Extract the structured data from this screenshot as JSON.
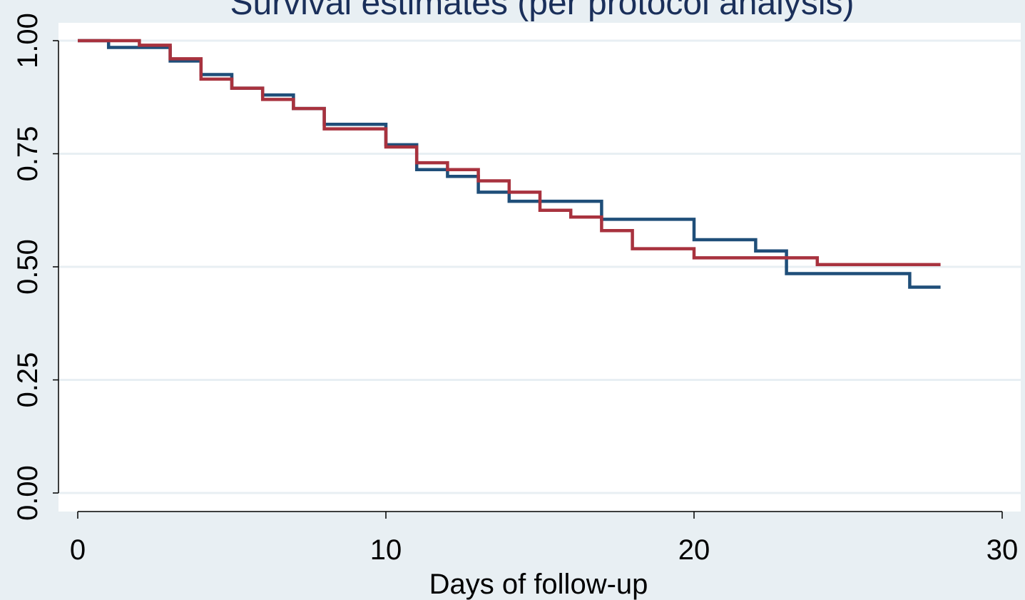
{
  "chart_data": {
    "type": "line",
    "step": true,
    "title": "Survival estimates (per protocol analysis)",
    "xlabel": "Days of follow-up",
    "ylabel": "",
    "xlim": [
      0,
      30
    ],
    "ylim": [
      0,
      1
    ],
    "x_ticks": [
      "0",
      "10",
      "20",
      "30"
    ],
    "y_ticks": [
      "0.00",
      "0.25",
      "0.50",
      "0.75",
      "1.00"
    ],
    "grid": "horizontal",
    "legend": "none",
    "colors": {
      "background": "#e8eff3",
      "plot_area": "#ffffff",
      "gridline": "#e8eff3",
      "title": "#1a2f5a"
    },
    "series": [
      {
        "color": "#1f4e79",
        "x": [
          0,
          1,
          3,
          4,
          5,
          6,
          7,
          8,
          10,
          11,
          12,
          13,
          14,
          17,
          20,
          22,
          23,
          27,
          28
        ],
        "y": [
          1.0,
          0.985,
          0.955,
          0.925,
          0.895,
          0.88,
          0.85,
          0.815,
          0.77,
          0.715,
          0.7,
          0.665,
          0.645,
          0.605,
          0.56,
          0.535,
          0.485,
          0.455,
          0.455
        ]
      },
      {
        "color": "#a8323e",
        "x": [
          0,
          2,
          3,
          4,
          5,
          6,
          7,
          8,
          10,
          11,
          12,
          13,
          14,
          15,
          16,
          17,
          18,
          20,
          24,
          28
        ],
        "y": [
          1.0,
          0.99,
          0.96,
          0.915,
          0.895,
          0.87,
          0.85,
          0.805,
          0.765,
          0.73,
          0.715,
          0.69,
          0.665,
          0.625,
          0.61,
          0.58,
          0.54,
          0.52,
          0.505,
          0.505
        ]
      }
    ]
  }
}
